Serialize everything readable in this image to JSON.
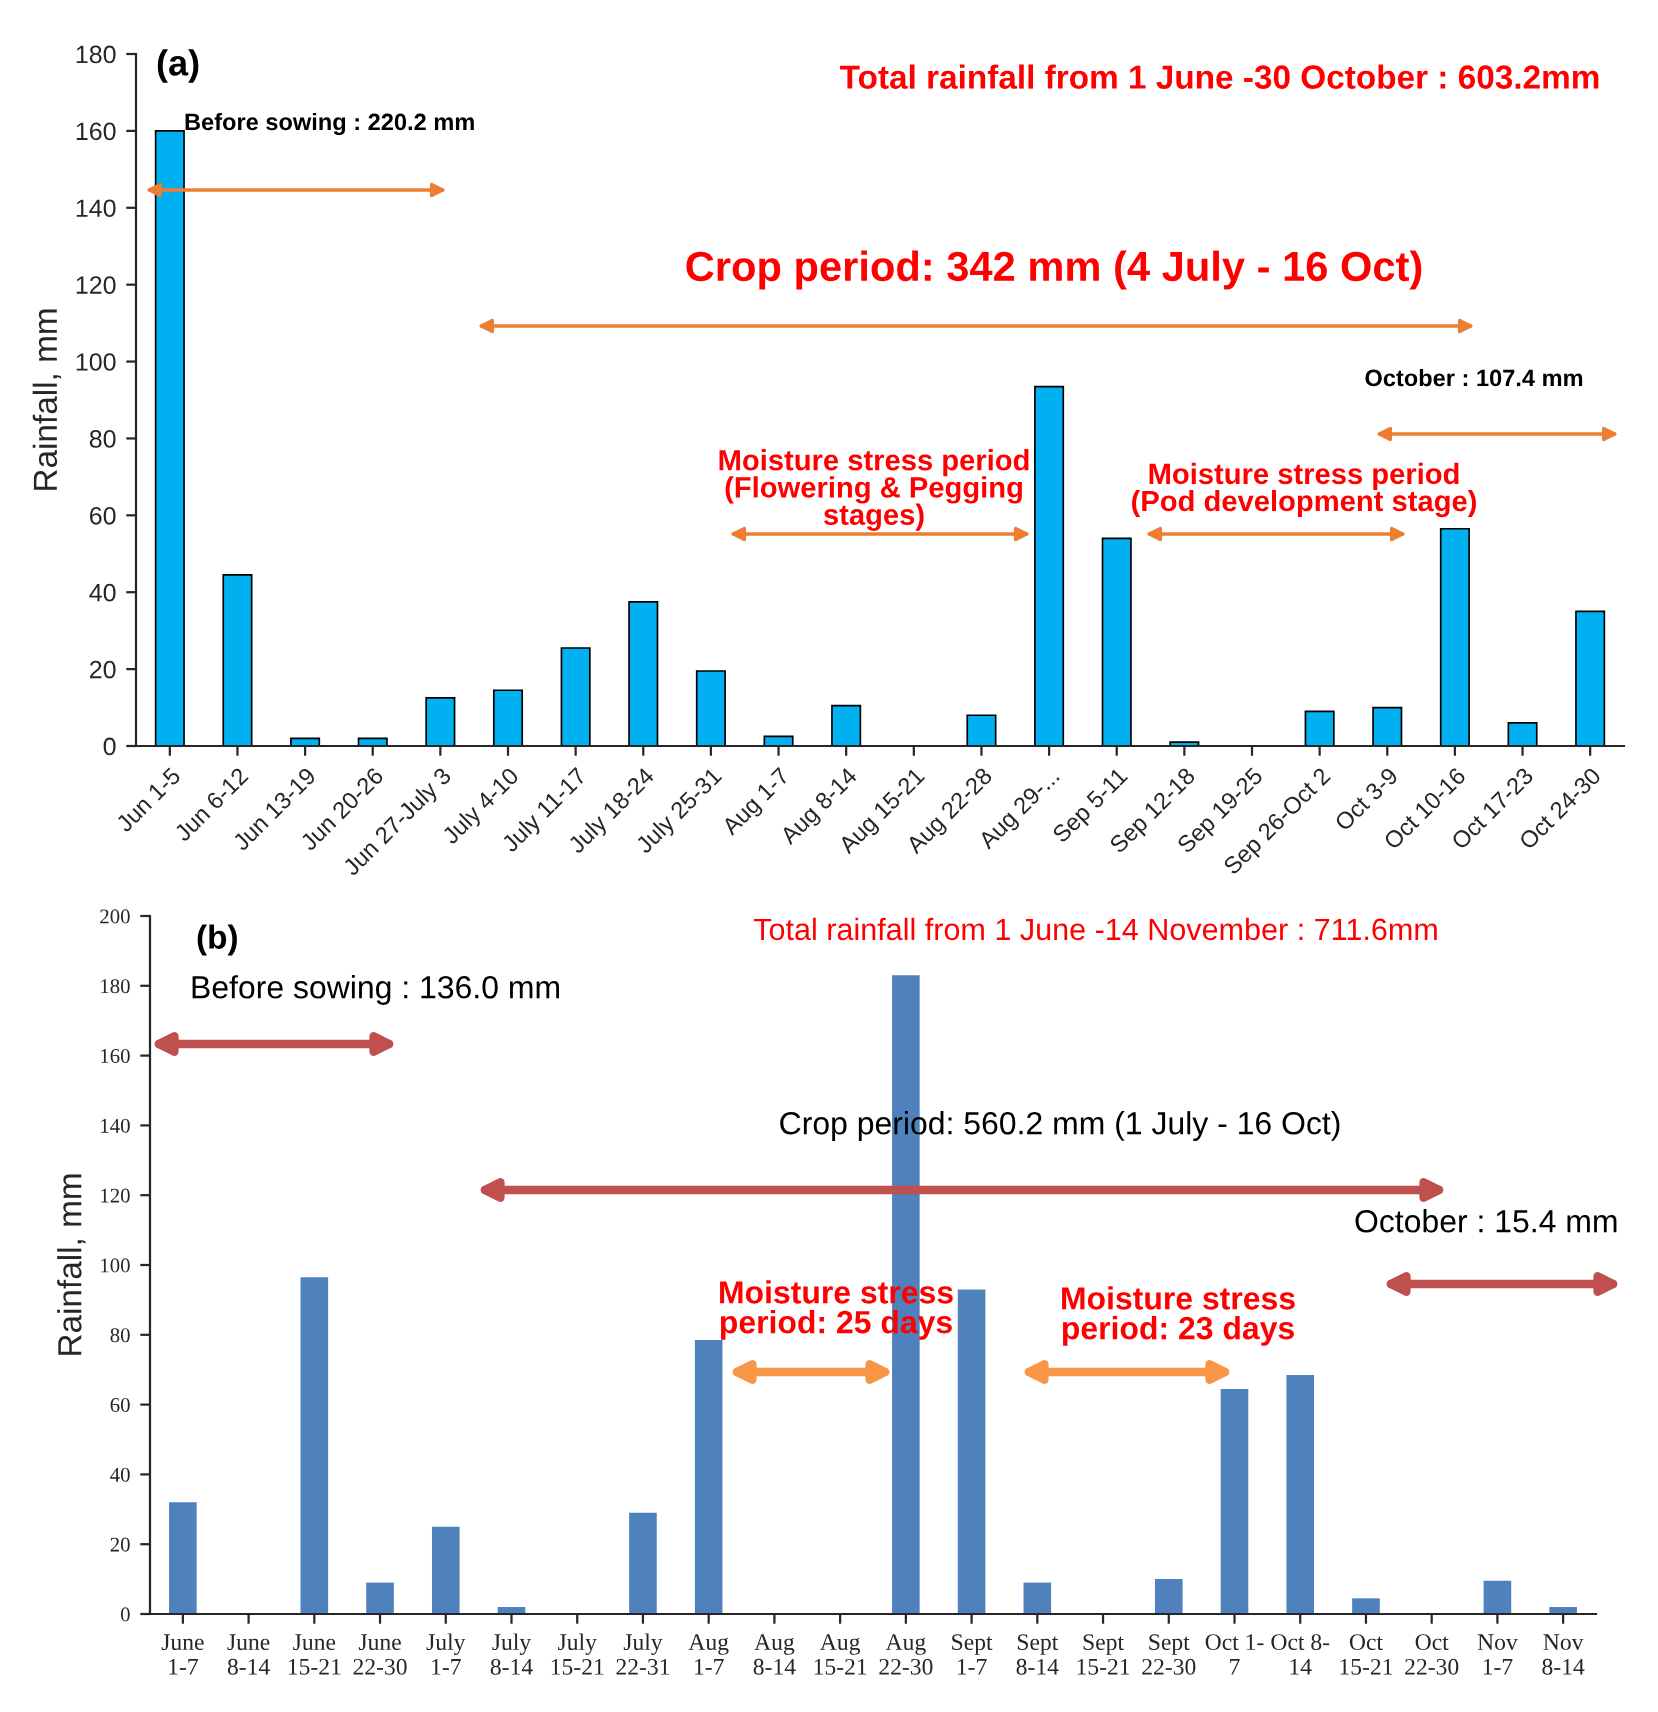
{
  "chart_data": [
    {
      "type": "bar",
      "ylabel": "Rainfall, mm",
      "color": "#00b0f0",
      "categories": [
        "Jun 1-5",
        "Jun 6-12",
        "Jun 13-19",
        "Jun 20-26",
        "Jun 27-July 3",
        "July 4-10",
        "July 11-17",
        "July 18-24",
        "July 25-31",
        "Aug 1-7",
        "Aug 8-14",
        "Aug 15-21",
        "Aug 22-28",
        "Aug 29-...",
        "Sep 5-11",
        "Sep 12-18",
        "Sep 19-25",
        "Sep 26-Oct 2",
        "Oct 3-9",
        "Oct 10-16",
        "Oct 17-23",
        "Oct 24-30"
      ],
      "values": [
        160,
        44.5,
        2,
        2,
        12.5,
        14.5,
        25.5,
        37.5,
        19.5,
        2.5,
        10.5,
        0,
        8,
        93.5,
        54,
        1,
        0,
        9,
        10,
        56.5,
        6,
        35
      ],
      "ylim": [
        0,
        180
      ],
      "yticks": [
        0,
        20,
        40,
        60,
        80,
        100,
        120,
        140,
        160,
        180
      ],
      "grid": false,
      "annotations": [
        "(a)",
        "Total rainfall from 1 June -30 October : 603.2mm",
        "Before sowing : 220.2 mm",
        "Crop period: 342 mm (4 July - 16 Oct)",
        "October : 107.4 mm",
        "Moisture stress period\n(Flowering & Pegging\nstages)",
        "Moisture stress period\n(Pod development stage)"
      ]
    },
    {
      "type": "bar",
      "ylabel": "Rainfall, mm",
      "color": "#4f81bd",
      "categories": [
        "June\n1-7",
        "June\n8-14",
        "June\n15-21",
        "June\n22-30",
        "July\n1-7",
        "July\n8-14",
        "July\n15-21",
        "July\n22-31",
        "Aug\n1-7",
        "Aug\n8-14",
        "Aug\n15-21",
        "Aug\n22-30",
        "Sept\n1-7",
        "Sept\n8-14",
        "Sept\n15-21",
        "Sept\n22-30",
        "Oct 1-\n7",
        "Oct 8-\n14",
        "Oct\n15-21",
        "Oct\n22-30",
        "Nov\n1-7",
        "Nov\n8-14"
      ],
      "values": [
        32,
        0,
        96.5,
        9,
        25,
        2,
        0,
        29,
        78.5,
        0,
        0,
        183,
        93,
        9,
        0,
        10,
        64.5,
        68.5,
        4.5,
        0,
        9.5,
        2
      ],
      "ylim": [
        0,
        200
      ],
      "yticks": [
        0,
        20,
        40,
        60,
        80,
        100,
        120,
        140,
        160,
        180,
        200
      ],
      "grid": false,
      "annotations": [
        "(b)",
        "Total rainfall from 1 June -14 November : 711.6mm",
        "Before sowing : 136.0 mm",
        "Crop period: 560.2 mm (1 July - 16 Oct)",
        "October : 15.4 mm",
        "Moisture stress\nperiod: 25 days",
        "Moisture stress\nperiod: 23 days"
      ]
    }
  ]
}
